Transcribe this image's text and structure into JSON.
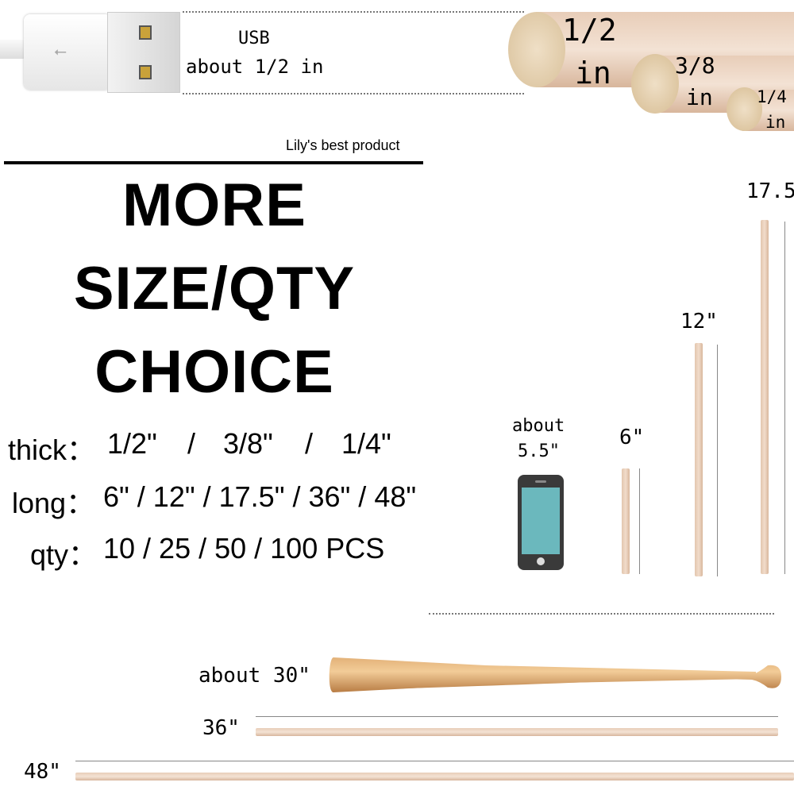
{
  "usb": {
    "title": "USB",
    "size": "about 1/2 in"
  },
  "dowel_ends": [
    {
      "fraction": "1/2",
      "unit": "in"
    },
    {
      "fraction": "3/8",
      "unit": "in"
    },
    {
      "fraction": "1/4",
      "unit": "in"
    }
  ],
  "brand": "Lily's best product",
  "headline": [
    "MORE",
    "SIZE/QTY",
    "CHOICE"
  ],
  "specs": {
    "thick": {
      "label": "thick：",
      "values": [
        "1/2\"",
        "/",
        "3/8\"",
        "/",
        "1/4\""
      ]
    },
    "long": {
      "label": "long：",
      "value": "6\" / 12\" / 17.5\" / 36\" / 48\""
    },
    "qty": {
      "label": "qty：",
      "value": "10 / 25 / 50 / 100 PCS"
    }
  },
  "phone": {
    "line1": "about",
    "line2": "5.5\""
  },
  "lengths": {
    "six": "6\"",
    "twelve": "12\"",
    "seventeen": "17.5\"",
    "bat": "about 30\"",
    "thirtysix": "36\"",
    "fortyeight": "48\""
  },
  "colors": {
    "wood": "#e8cdb8",
    "phone_screen": "#6bb8bd",
    "phone_body": "#3a3a3a"
  }
}
